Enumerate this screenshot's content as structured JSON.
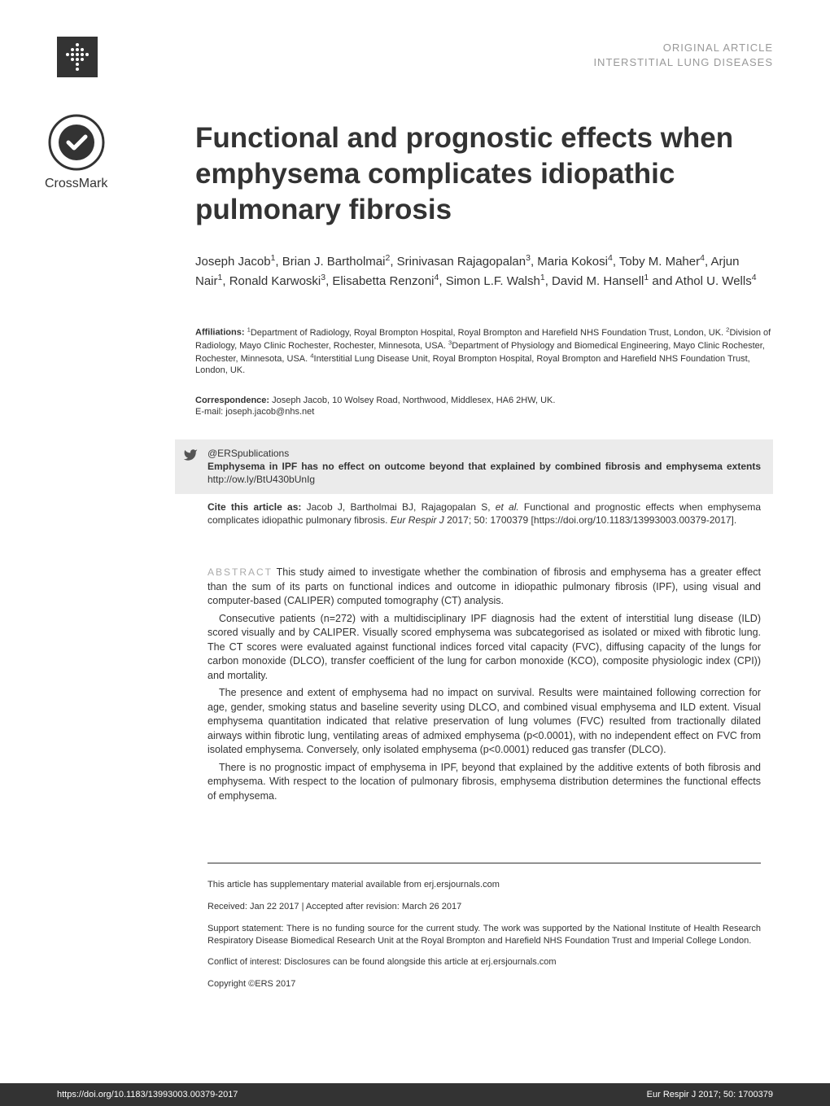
{
  "header": {
    "line1": "ORIGINAL ARTICLE",
    "line2": "INTERSTITIAL LUNG DISEASES"
  },
  "crossmark_label": "CrossMark",
  "title": "Functional and prognostic effects when emphysema complicates idiopathic pulmonary fibrosis",
  "authors_html": "Joseph Jacob<sup>1</sup>, Brian J. Bartholmai<sup>2</sup>, Srinivasan Rajagopalan<sup>3</sup>, Maria Kokosi<sup>4</sup>, Toby M. Maher<sup>4</sup>, Arjun Nair<sup>1</sup>, Ronald Karwoski<sup>3</sup>, Elisabetta Renzoni<sup>4</sup>, Simon L.F. Walsh<sup>1</sup>, David M. Hansell<sup>1</sup> and Athol U. Wells<sup>4</sup>",
  "affiliations": {
    "label": "Affiliations:",
    "text_html": " <sup>1</sup>Department of Radiology, Royal Brompton Hospital, Royal Brompton and Harefield NHS Foundation Trust, London, UK. <sup>2</sup>Division of Radiology, Mayo Clinic Rochester, Rochester, Minnesota, USA. <sup>3</sup>Department of Physiology and Biomedical Engineering, Mayo Clinic Rochester, Rochester, Minnesota, USA. <sup>4</sup>Interstitial Lung Disease Unit, Royal Brompton Hospital, Royal Brompton and Harefield NHS Foundation Trust, London, UK."
  },
  "correspondence": {
    "label": "Correspondence:",
    "text": " Joseph Jacob, 10 Wolsey Road, Northwood, Middlesex, HA6 2HW, UK.",
    "email_label": "E-mail: ",
    "email": "joseph.jacob@nhs.net"
  },
  "ers": {
    "handle": "@ERSpublications",
    "statement_bold": "Emphysema in IPF has no effect on outcome beyond that explained by combined fibrosis and emphysema extents ",
    "statement_link": "http://ow.ly/BtU430bUnIg"
  },
  "cite": {
    "label": "Cite this article as: ",
    "text_html": "Jacob J, Bartholmai BJ, Rajagopalan S, <span class=\"ital\">et al.</span> Functional and prognostic effects when emphysema complicates idiopathic pulmonary fibrosis. <span class=\"ital\">Eur Respir J</span> 2017; 50: 1700379 [https://doi.org/10.1183/13993003.00379-2017]."
  },
  "abstract": {
    "label": "ABSTRACT",
    "p1": " This study aimed to investigate whether the combination of fibrosis and emphysema has a greater effect than the sum of its parts on functional indices and outcome in idiopathic pulmonary fibrosis (IPF), using visual and computer-based (CALIPER) computed tomography (CT) analysis.",
    "p2": "Consecutive patients (n=272) with a multidisciplinary IPF diagnosis had the extent of interstitial lung disease (ILD) scored visually and by CALIPER. Visually scored emphysema was subcategorised as isolated or mixed with fibrotic lung. The CT scores were evaluated against functional indices forced vital capacity (FVC), diffusing capacity of the lungs for carbon monoxide (DLCO), transfer coefficient of the lung for carbon monoxide (KCO), composite physiologic index (CPI)) and mortality.",
    "p3": "The presence and extent of emphysema had no impact on survival. Results were maintained following correction for age, gender, smoking status and baseline severity using DLCO, and combined visual emphysema and ILD extent. Visual emphysema quantitation indicated that relative preservation of lung volumes (FVC) resulted from tractionally dilated airways within fibrotic lung, ventilating areas of admixed emphysema (p<0.0001), with no independent effect on FVC from isolated emphysema. Conversely, only isolated emphysema (p<0.0001) reduced gas transfer (DLCO).",
    "p4": "There is no prognostic impact of emphysema in IPF, beyond that explained by the additive extents of both fibrosis and emphysema. With respect to the location of pulmonary fibrosis, emphysema distribution determines the functional effects of emphysema."
  },
  "footer": {
    "supp": "This article has supplementary material available from erj.ersjournals.com",
    "received": "Received: Jan 22 2017 | Accepted after revision: March 26 2017",
    "support": "Support statement: There is no funding source for the current study. The work was supported by the National Institute of Health Research Respiratory Disease Biomedical Research Unit at the Royal Brompton and Harefield NHS Foundation Trust and Imperial College London.",
    "conflict": "Conflict of interest: Disclosures can be found alongside this article at erj.ersjournals.com",
    "copyright": "Copyright ©ERS 2017"
  },
  "bottom": {
    "doi": "https://doi.org/10.1183/13993003.00379-2017",
    "citation": "Eur Respir J 2017; 50: 1700379"
  },
  "colors": {
    "header_gray": "#999999",
    "box_gray": "#ebebeb",
    "dark": "#333333",
    "abstract_label": "#aaaaaa"
  }
}
